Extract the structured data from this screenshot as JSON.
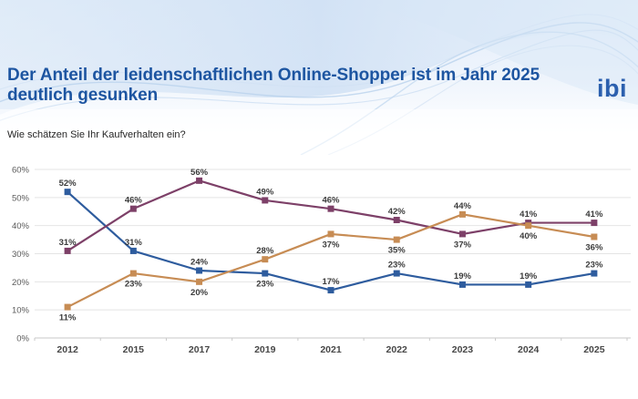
{
  "header": {
    "title": "Der Anteil der leidenschaftlichen Online-Shopper ist im Jahr 2025 deutlich gesunken",
    "logo_text": "ibi"
  },
  "question": "Wie schätzen Sie Ihr Kaufverhalten ein?",
  "colors": {
    "title_blue": "#1d55a1",
    "logo_blue": "#2b5fae",
    "gridline": "#e4e4e4",
    "axis_line": "#c8c8c8",
    "blue_series": "#2e5c9e",
    "plum_series": "#7d4068",
    "orange_series": "#c78c54"
  },
  "chart_data": {
    "type": "line",
    "title": "",
    "xlabel": "",
    "ylabel": "",
    "legend": "none",
    "grid": true,
    "ylim": [
      0,
      60
    ],
    "ytick_values": [
      0,
      10,
      20,
      30,
      40,
      50,
      60
    ],
    "ytick_labels": [
      "0%",
      "10%",
      "20%",
      "30%",
      "40%",
      "50%",
      "60%"
    ],
    "categories": [
      "2012",
      "2015",
      "2017",
      "2019",
      "2021",
      "2022",
      "2023",
      "2024",
      "2025"
    ],
    "series": [
      {
        "name": "blue-series",
        "color": "#2e5c9e",
        "values": [
          52,
          31,
          24,
          23,
          17,
          23,
          19,
          19,
          23
        ],
        "labels": [
          "52%",
          "31%",
          "24%",
          "23%",
          "17%",
          "23%",
          "19%",
          "19%",
          "23%"
        ],
        "label_positions": [
          "above",
          "above",
          "above",
          "below",
          "above",
          "above",
          "above",
          "above",
          "above"
        ]
      },
      {
        "name": "plum-series",
        "color": "#7d4068",
        "values": [
          31,
          46,
          56,
          49,
          46,
          42,
          37,
          41,
          41
        ],
        "labels": [
          "31%",
          "46%",
          "56%",
          "49%",
          "46%",
          "42%",
          "37%",
          "41%",
          "41%"
        ],
        "label_positions": [
          "above",
          "above",
          "above",
          "above",
          "above",
          "above",
          "below",
          "above",
          "above"
        ]
      },
      {
        "name": "orange-series",
        "color": "#c78c54",
        "values": [
          11,
          23,
          20,
          28,
          37,
          35,
          44,
          40,
          36
        ],
        "labels": [
          "11%",
          "23%",
          "20%",
          "28%",
          "37%",
          "35%",
          "44%",
          "40%",
          "36%"
        ],
        "label_positions": [
          "below",
          "below",
          "below",
          "above",
          "below",
          "below",
          "above",
          "below",
          "below"
        ]
      }
    ]
  }
}
